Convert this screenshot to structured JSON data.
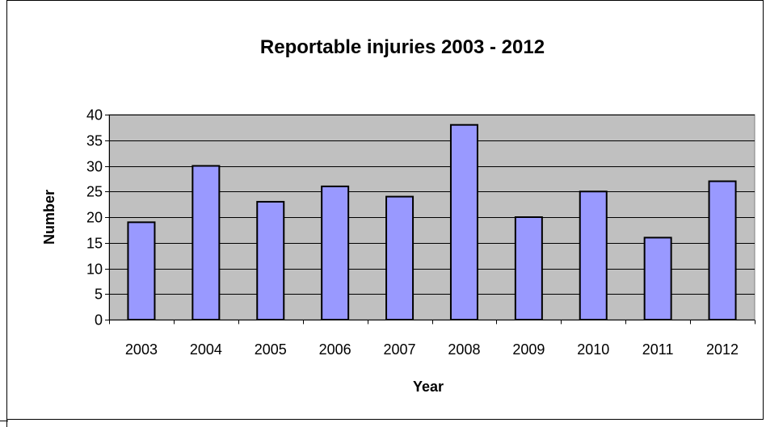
{
  "chart_data": {
    "type": "bar",
    "title": "Reportable injuries 2003 - 2012",
    "xlabel": "Year",
    "ylabel": "Number",
    "categories": [
      "2003",
      "2004",
      "2005",
      "2006",
      "2007",
      "2008",
      "2009",
      "2010",
      "2011",
      "2012"
    ],
    "values": [
      19,
      30,
      23,
      26,
      24,
      38,
      20,
      25,
      16,
      27
    ],
    "ylim": [
      0,
      40
    ],
    "yticks": [
      "0",
      "5",
      "10",
      "15",
      "20",
      "25",
      "30",
      "35",
      "40"
    ],
    "grid": true,
    "legend": "none",
    "colors": {
      "bar": "#9999ff",
      "plot_background": "#c0c0c0",
      "gridline": "#000000"
    }
  }
}
